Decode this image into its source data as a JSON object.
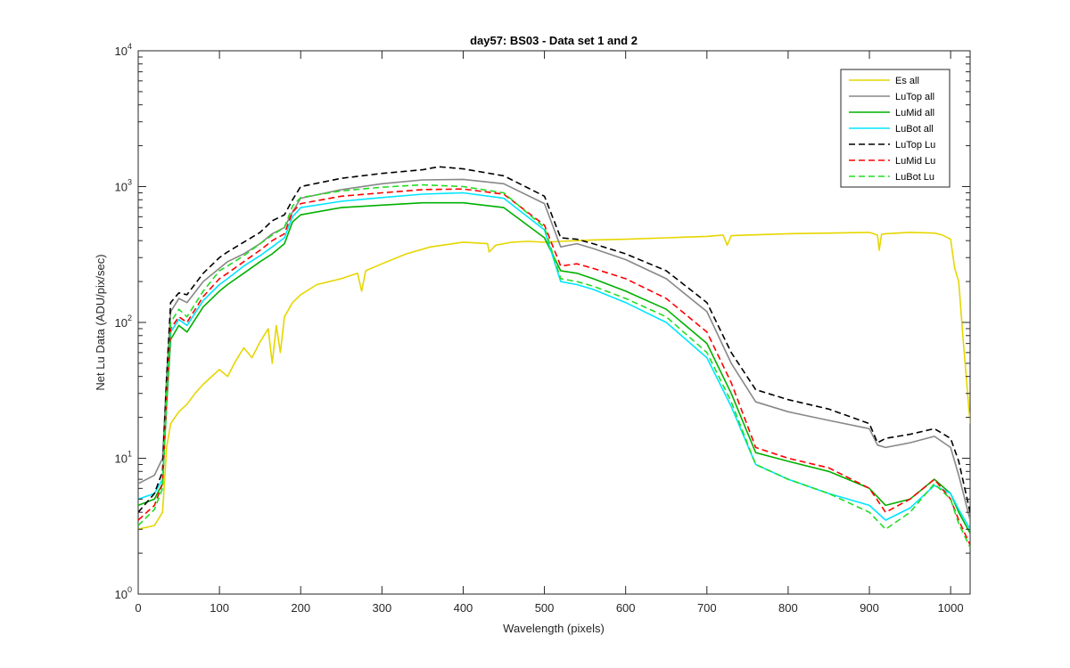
{
  "chart_data": {
    "type": "line",
    "title": "day57: BS03 - Data set 1 and 2",
    "xlabel": "Wavelength (pixels)",
    "ylabel": "Net Lu Data (ADU/pix/sec)",
    "xlim": [
      0,
      1024
    ],
    "ylim": [
      1,
      10000
    ],
    "yscale": "log",
    "grid": false,
    "legend_position": "top-right",
    "x_ticks": [
      0,
      100,
      200,
      300,
      400,
      500,
      600,
      700,
      800,
      900,
      1000
    ],
    "x_tick_labels": [
      "0",
      "100",
      "200",
      "300",
      "400",
      "500",
      "600",
      "700",
      "800",
      "900",
      "1000"
    ],
    "y_ticks": [
      1,
      10,
      100,
      1000,
      10000
    ],
    "y_tick_labels": [
      {
        "base": "10",
        "exp": "0"
      },
      {
        "base": "10",
        "exp": "1"
      },
      {
        "base": "10",
        "exp": "2"
      },
      {
        "base": "10",
        "exp": "3"
      },
      {
        "base": "10",
        "exp": "4"
      }
    ],
    "series": [
      {
        "name": "Es  all",
        "color": "#e6d600",
        "dash": "solid",
        "x": [
          0,
          20,
          30,
          35,
          40,
          50,
          60,
          70,
          80,
          100,
          110,
          120,
          130,
          140,
          150,
          160,
          165,
          170,
          175,
          180,
          190,
          200,
          220,
          250,
          270,
          275,
          280,
          300,
          330,
          360,
          400,
          430,
          432,
          440,
          460,
          480,
          500,
          520,
          540,
          560,
          600,
          650,
          700,
          720,
          725,
          730,
          750,
          800,
          850,
          900,
          910,
          912,
          915,
          920,
          950,
          980,
          990,
          1000,
          1005,
          1010,
          1015,
          1024
        ],
        "y": [
          3.0,
          3.2,
          4.0,
          12,
          18,
          22,
          25,
          30,
          35,
          45,
          40,
          52,
          65,
          55,
          72,
          90,
          50,
          95,
          60,
          110,
          140,
          160,
          190,
          210,
          230,
          170,
          240,
          270,
          320,
          360,
          390,
          380,
          330,
          370,
          390,
          395,
          390,
          395,
          400,
          405,
          410,
          420,
          430,
          440,
          370,
          435,
          440,
          450,
          455,
          460,
          440,
          340,
          445,
          450,
          460,
          455,
          440,
          410,
          250,
          200,
          80,
          18
        ]
      },
      {
        "name": "LuTop  all",
        "color": "#888888",
        "dash": "solid",
        "x": [
          0,
          20,
          30,
          35,
          40,
          50,
          60,
          80,
          100,
          110,
          130,
          150,
          165,
          180,
          190,
          200,
          250,
          300,
          350,
          400,
          450,
          500,
          520,
          540,
          560,
          600,
          650,
          700,
          730,
          760,
          800,
          850,
          900,
          910,
          920,
          950,
          980,
          1000,
          1010,
          1024
        ],
        "y": [
          6.5,
          7.5,
          10,
          40,
          120,
          150,
          140,
          200,
          250,
          280,
          320,
          380,
          450,
          500,
          650,
          820,
          950,
          1050,
          1120,
          1130,
          1050,
          750,
          360,
          380,
          350,
          290,
          210,
          120,
          50,
          26,
          22,
          19,
          16.5,
          12.5,
          12.0,
          13.0,
          14.5,
          12.0,
          7.5,
          3.5
        ]
      },
      {
        "name": "LuMid  all",
        "color": "#00b000",
        "dash": "solid",
        "x": [
          0,
          20,
          30,
          35,
          40,
          50,
          60,
          80,
          100,
          110,
          130,
          150,
          165,
          180,
          190,
          200,
          250,
          300,
          350,
          400,
          450,
          500,
          520,
          540,
          560,
          600,
          650,
          700,
          730,
          760,
          800,
          850,
          900,
          920,
          950,
          980,
          1000,
          1010,
          1024
        ],
        "y": [
          4.5,
          5.0,
          6.5,
          25,
          75,
          95,
          85,
          130,
          170,
          190,
          230,
          280,
          320,
          380,
          550,
          620,
          700,
          730,
          760,
          760,
          700,
          420,
          240,
          230,
          210,
          170,
          125,
          70,
          30,
          11.0,
          9.5,
          8.0,
          6.0,
          4.5,
          5.0,
          7.0,
          5.5,
          4.0,
          2.8
        ]
      },
      {
        "name": "LuBot  all",
        "color": "#00e5ff",
        "dash": "solid",
        "x": [
          0,
          20,
          30,
          35,
          40,
          50,
          60,
          80,
          100,
          110,
          130,
          150,
          165,
          180,
          190,
          200,
          250,
          300,
          350,
          400,
          450,
          500,
          520,
          540,
          560,
          600,
          650,
          700,
          730,
          760,
          800,
          850,
          900,
          920,
          950,
          980,
          1000,
          1010,
          1024
        ],
        "y": [
          5.0,
          5.5,
          7.0,
          28,
          85,
          105,
          95,
          145,
          190,
          210,
          260,
          310,
          360,
          420,
          600,
          700,
          780,
          830,
          880,
          900,
          820,
          480,
          200,
          190,
          175,
          140,
          100,
          55,
          24,
          9.0,
          7.0,
          5.5,
          4.5,
          3.5,
          4.3,
          6.3,
          5.5,
          4.2,
          3.0
        ]
      },
      {
        "name": "LuTop  Lu",
        "color": "#000000",
        "dash": "dashed",
        "x": [
          0,
          20,
          30,
          35,
          40,
          50,
          60,
          80,
          100,
          110,
          130,
          150,
          165,
          180,
          190,
          200,
          250,
          300,
          350,
          370,
          400,
          450,
          500,
          520,
          540,
          560,
          600,
          650,
          700,
          730,
          760,
          800,
          850,
          900,
          910,
          920,
          950,
          980,
          1000,
          1010,
          1024
        ],
        "y": [
          4.0,
          5.5,
          8.0,
          40,
          140,
          165,
          160,
          230,
          300,
          330,
          390,
          460,
          560,
          620,
          800,
          1000,
          1150,
          1250,
          1330,
          1400,
          1350,
          1200,
          850,
          420,
          410,
          380,
          320,
          240,
          140,
          60,
          32,
          27,
          23,
          18,
          13.0,
          14.0,
          15.0,
          16.5,
          14.0,
          9.5,
          4.0
        ]
      },
      {
        "name": "LuMid  Lu",
        "color": "#ff0000",
        "dash": "dashed",
        "x": [
          0,
          20,
          30,
          35,
          40,
          50,
          60,
          80,
          100,
          110,
          130,
          150,
          165,
          180,
          190,
          200,
          250,
          300,
          350,
          400,
          450,
          500,
          520,
          540,
          560,
          600,
          650,
          700,
          730,
          760,
          800,
          850,
          900,
          920,
          950,
          980,
          1000,
          1010,
          1024
        ],
        "y": [
          3.5,
          4.5,
          6.5,
          28,
          90,
          110,
          100,
          155,
          210,
          230,
          280,
          340,
          400,
          450,
          650,
          750,
          850,
          900,
          950,
          960,
          880,
          520,
          260,
          270,
          250,
          210,
          150,
          85,
          36,
          12.0,
          10.0,
          8.5,
          6.0,
          4.0,
          5.0,
          7.0,
          5.0,
          3.5,
          2.3
        ]
      },
      {
        "name": "LuBot  Lu",
        "color": "#22dd22",
        "dash": "dashed",
        "x": [
          0,
          20,
          30,
          35,
          40,
          50,
          60,
          80,
          100,
          110,
          130,
          150,
          165,
          180,
          190,
          200,
          250,
          300,
          350,
          400,
          450,
          500,
          520,
          540,
          560,
          600,
          650,
          700,
          730,
          760,
          800,
          850,
          900,
          920,
          950,
          980,
          1000,
          1010,
          1024
        ],
        "y": [
          3.2,
          4.2,
          6.0,
          30,
          100,
          125,
          110,
          170,
          240,
          260,
          310,
          380,
          440,
          500,
          720,
          830,
          930,
          990,
          1030,
          1000,
          900,
          500,
          210,
          200,
          185,
          150,
          110,
          60,
          26,
          9.0,
          7.0,
          5.5,
          4.0,
          3.0,
          4.0,
          6.5,
          5.0,
          3.3,
          2.2
        ]
      }
    ]
  }
}
